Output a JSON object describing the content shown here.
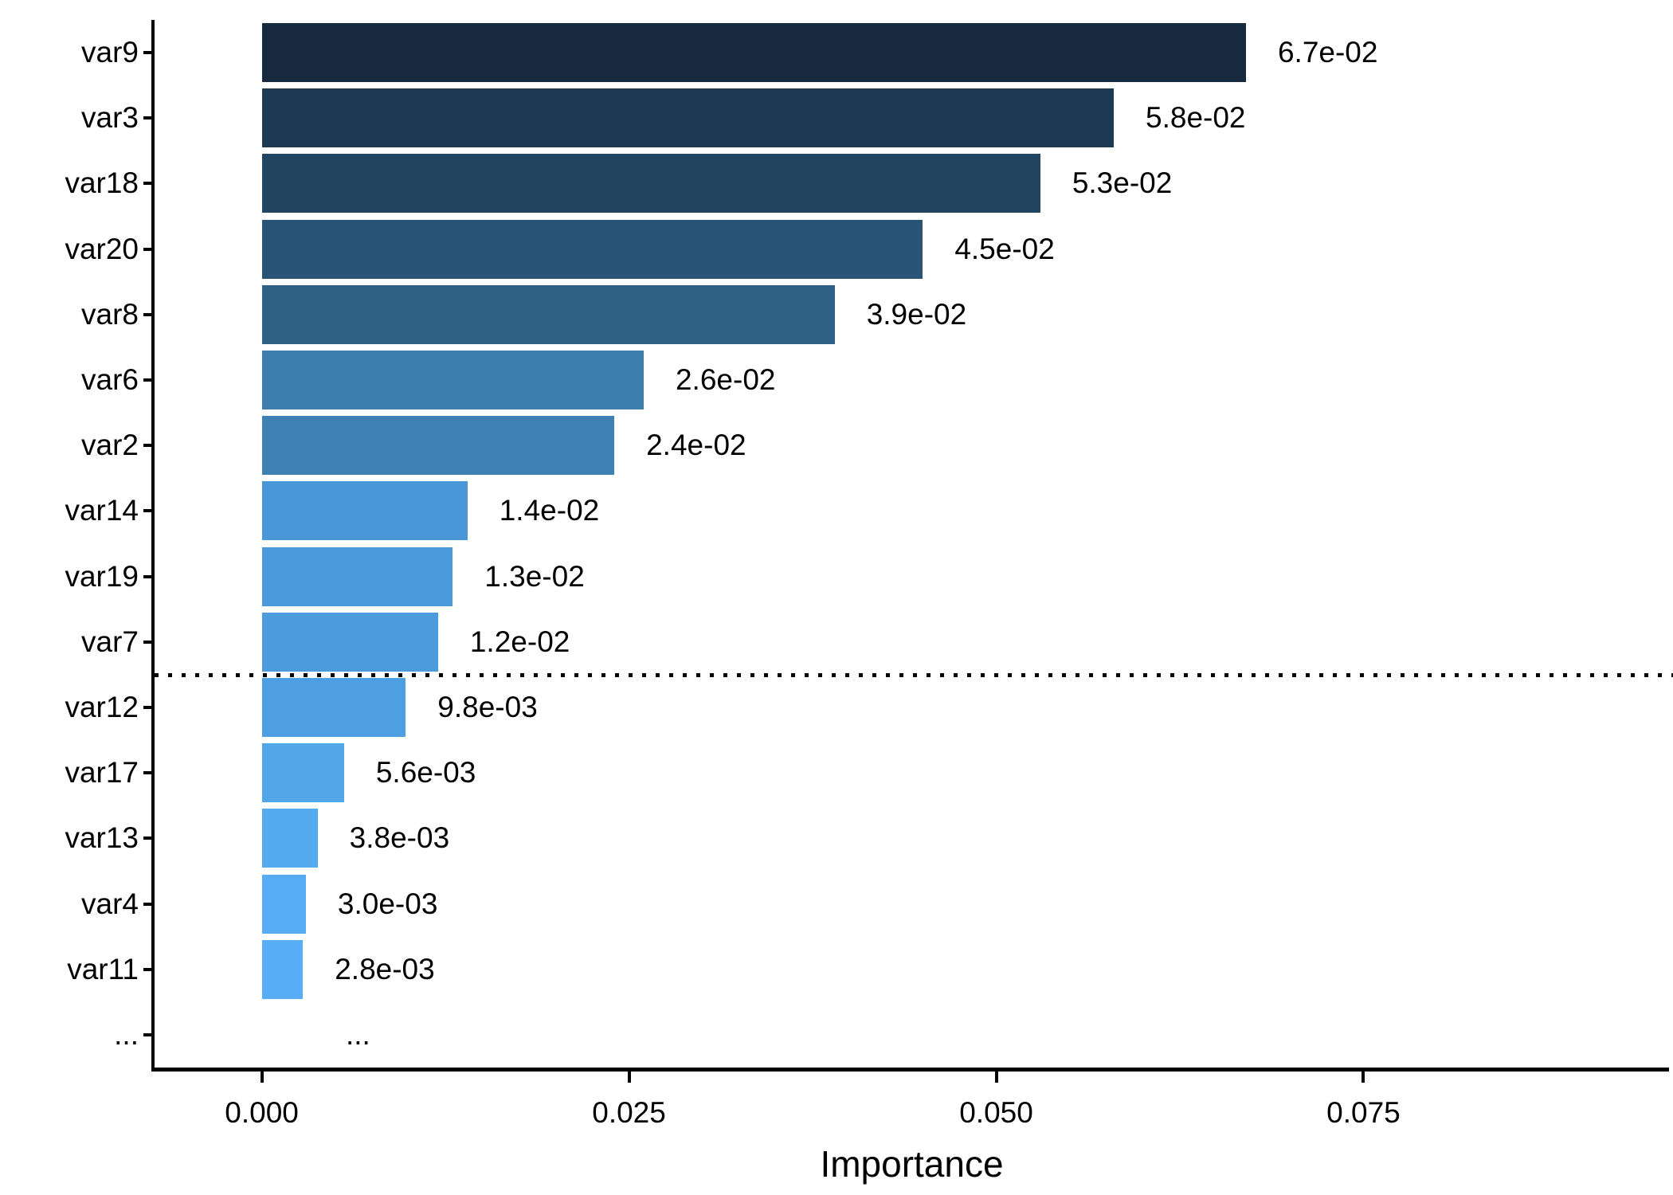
{
  "figure": {
    "background": "#FFFFFF"
  },
  "chart_data": {
    "type": "bar",
    "orientation": "horizontal",
    "title": "",
    "xlabel": "Importance",
    "ylabel": "",
    "grid": false,
    "legend": false,
    "axis_color": "#000000",
    "text_color": "#000000",
    "x_axis": {
      "range": [
        -0.0073,
        0.0958
      ],
      "ticks": [
        0,
        0.025,
        0.05,
        0.075
      ],
      "tick_labels": [
        "0.000",
        "0.025",
        "0.050",
        "0.075"
      ]
    },
    "rows": [
      {
        "category": "var9",
        "value": 0.067,
        "value_label": "6.7e-02",
        "color": "#16293E"
      },
      {
        "category": "var3",
        "value": 0.058,
        "value_label": "5.8e-02",
        "color": "#1E3A53"
      },
      {
        "category": "var18",
        "value": 0.053,
        "value_label": "5.3e-02",
        "color": "#224561"
      },
      {
        "category": "var20",
        "value": 0.045,
        "value_label": "4.5e-02",
        "color": "#2A5476"
      },
      {
        "category": "var8",
        "value": 0.039,
        "value_label": "3.9e-02",
        "color": "#2F6186"
      },
      {
        "category": "var6",
        "value": 0.026,
        "value_label": "2.6e-02",
        "color": "#3E7EAF"
      },
      {
        "category": "var2",
        "value": 0.024,
        "value_label": "2.4e-02",
        "color": "#4081B4"
      },
      {
        "category": "var14",
        "value": 0.014,
        "value_label": "1.4e-02",
        "color": "#4997D6"
      },
      {
        "category": "var19",
        "value": 0.013,
        "value_label": "1.3e-02",
        "color": "#4A99D9"
      },
      {
        "category": "var7",
        "value": 0.012,
        "value_label": "1.2e-02",
        "color": "#4C9CDC"
      },
      {
        "category": "var12",
        "value": 0.0098,
        "value_label": "9.8e-03",
        "color": "#4D9FE1"
      },
      {
        "category": "var17",
        "value": 0.0056,
        "value_label": "5.6e-03",
        "color": "#52A7EB"
      },
      {
        "category": "var13",
        "value": 0.0038,
        "value_label": "3.8e-03",
        "color": "#54ABEF"
      },
      {
        "category": "var4",
        "value": 0.003,
        "value_label": "3.0e-03",
        "color": "#56ADF3"
      },
      {
        "category": "var11",
        "value": 0.0028,
        "value_label": "2.8e-03",
        "color": "#57AEF5"
      },
      {
        "category": "...",
        "value": null,
        "value_label": "...",
        "color": null
      }
    ],
    "threshold_line": {
      "style": "dotted",
      "color": "#000000",
      "position_after_category": "var7"
    }
  }
}
